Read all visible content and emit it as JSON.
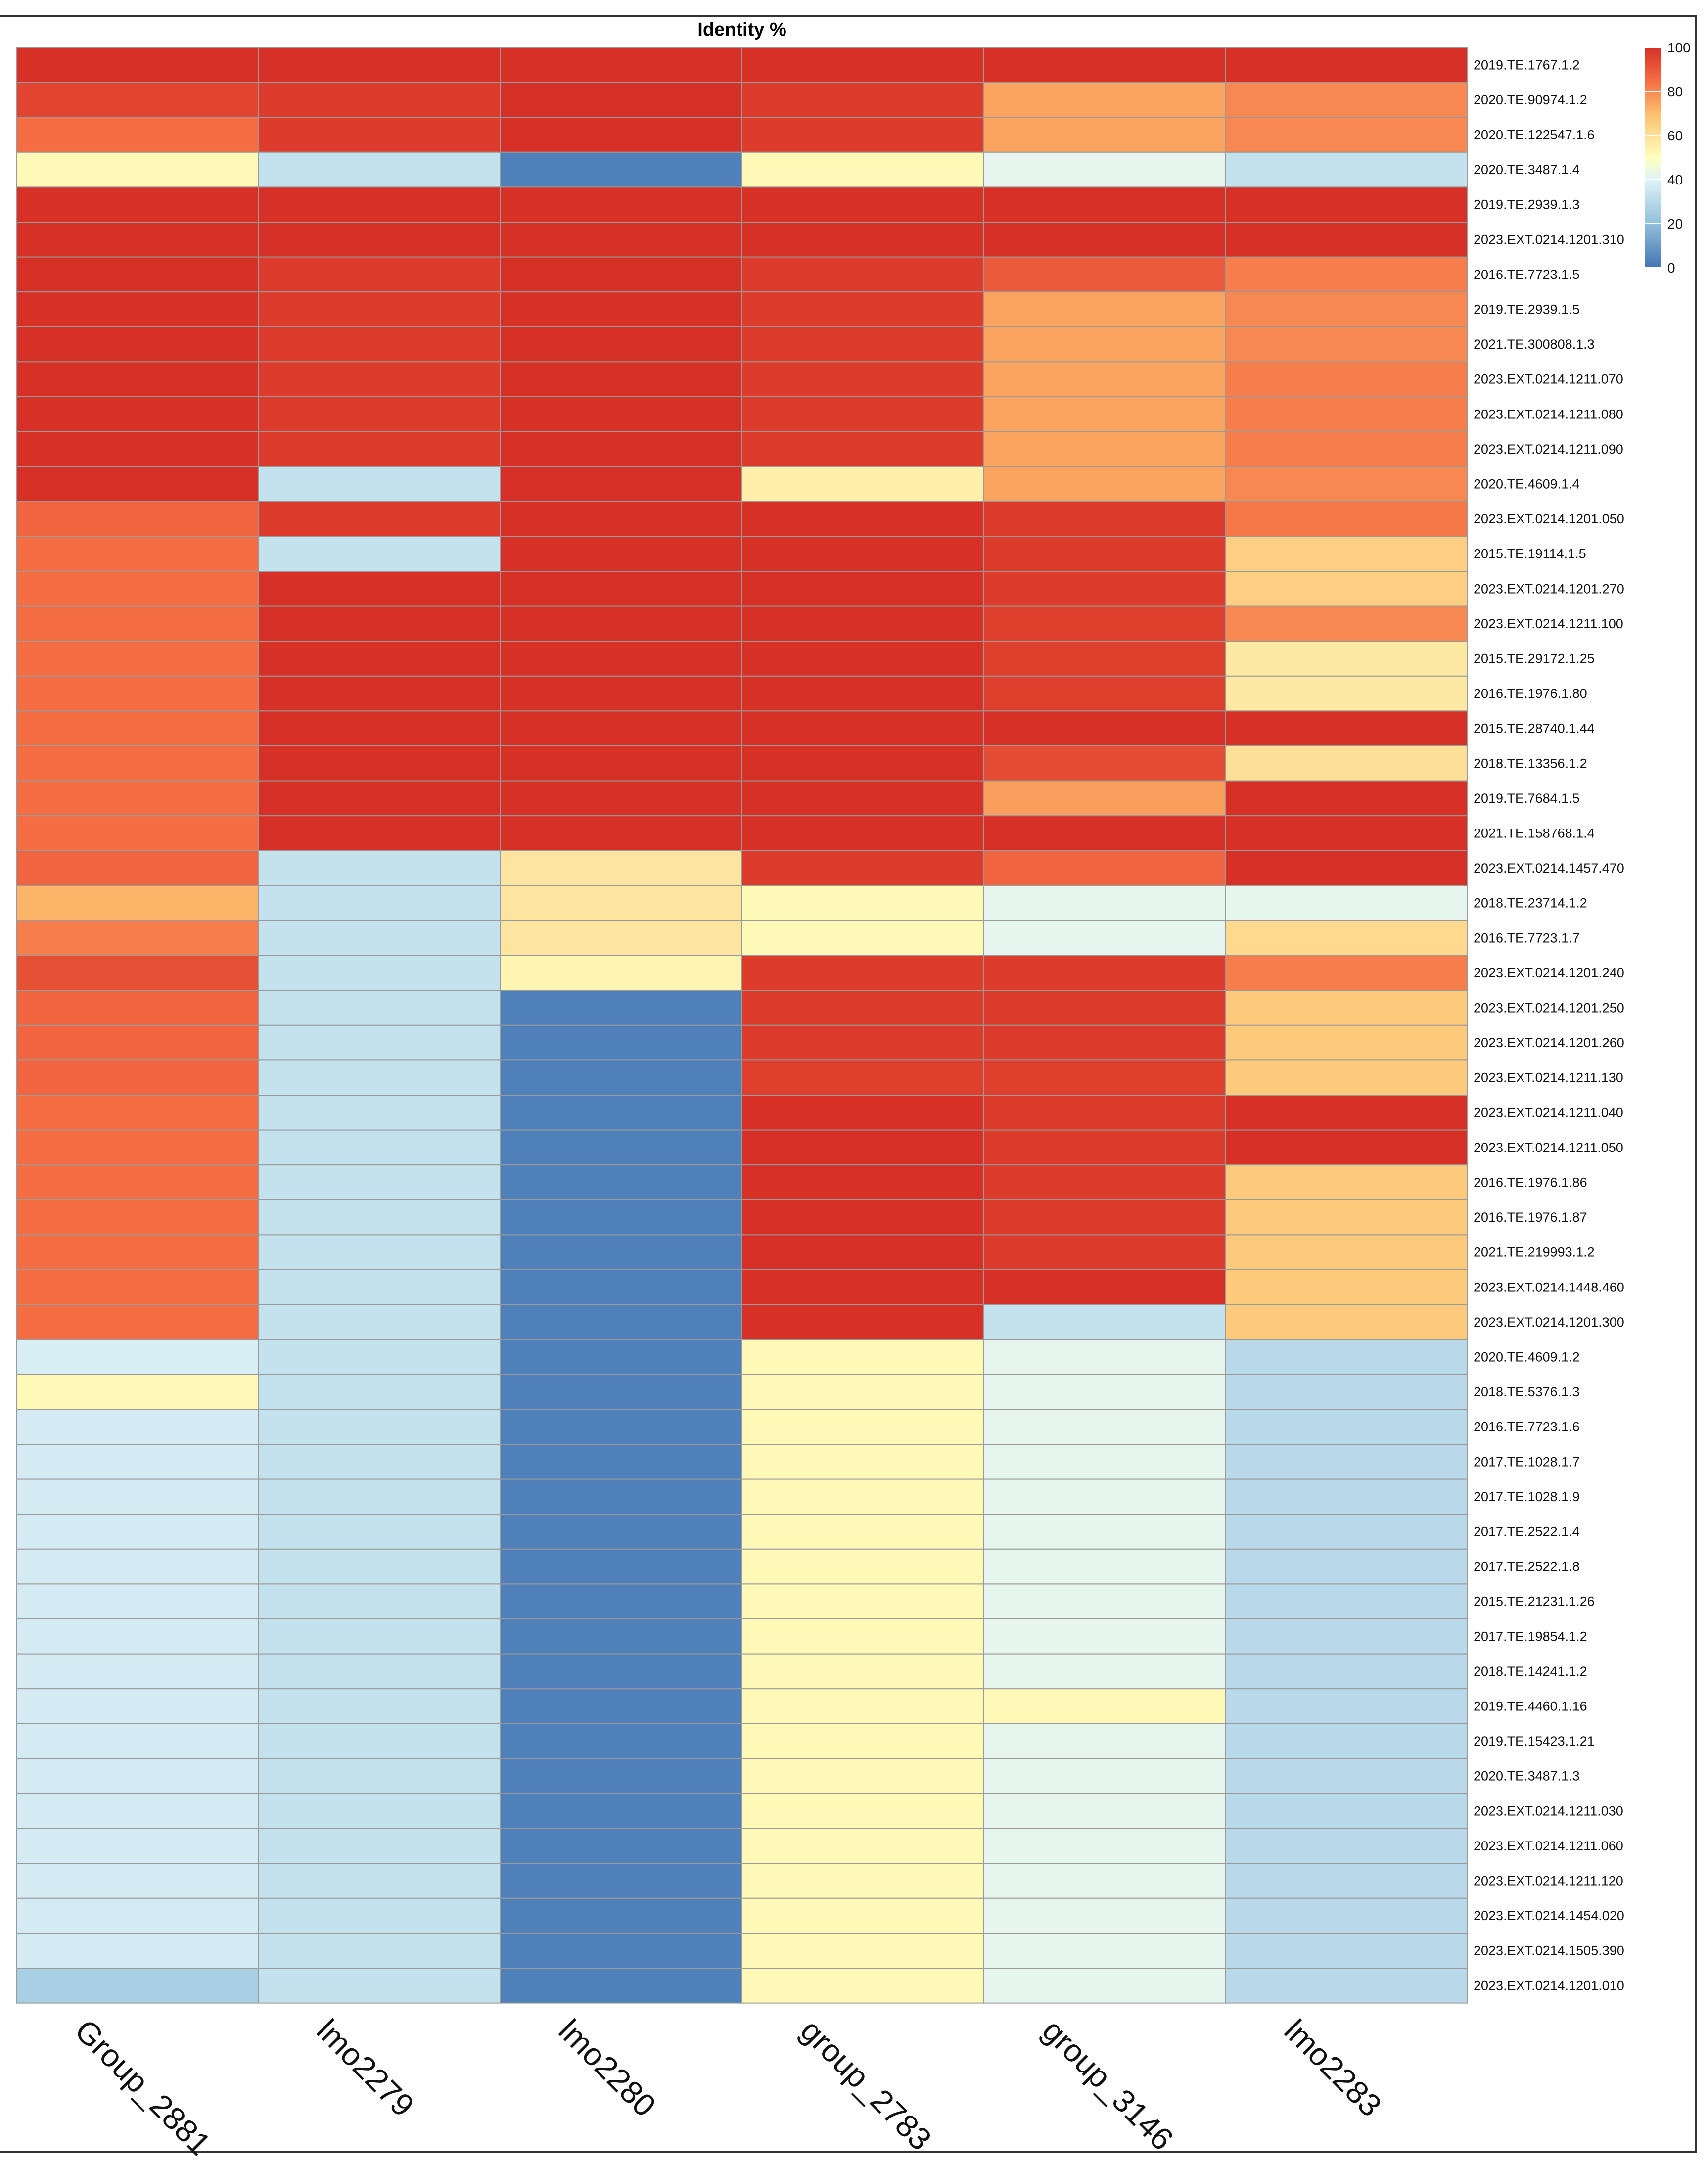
{
  "chart_data": {
    "type": "heatmap",
    "title": "Identity %",
    "columns": [
      "Group_2881",
      "lmo2279",
      "lmo2280",
      "group_2783",
      "group_3146",
      "lmo2283"
    ],
    "rows": [
      "2019.TE.1767.1.2",
      "2020.TE.90974.1.2",
      "2020.TE.122547.1.6",
      "2020.TE.3487.1.4",
      "2019.TE.2939.1.3",
      "2023.EXT.0214.1201.310",
      "2016.TE.7723.1.5",
      "2019.TE.2939.1.5",
      "2021.TE.300808.1.3",
      "2023.EXT.0214.1211.070",
      "2023.EXT.0214.1211.080",
      "2023.EXT.0214.1211.090",
      "2020.TE.4609.1.4",
      "2023.EXT.0214.1201.050",
      "2015.TE.19114.1.5",
      "2023.EXT.0214.1201.270",
      "2023.EXT.0214.1211.100",
      "2015.TE.29172.1.25",
      "2016.TE.1976.1.80",
      "2015.TE.28740.1.44",
      "2018.TE.13356.1.2",
      "2019.TE.7684.1.5",
      "2021.TE.158768.1.4",
      "2023.EXT.0214.1457.470",
      "2018.TE.23714.1.2",
      "2016.TE.7723.1.7",
      "2023.EXT.0214.1201.240",
      "2023.EXT.0214.1201.250",
      "2023.EXT.0214.1201.260",
      "2023.EXT.0214.1211.130",
      "2023.EXT.0214.1211.040",
      "2023.EXT.0214.1211.050",
      "2016.TE.1976.1.86",
      "2016.TE.1976.1.87",
      "2021.TE.219993.1.2",
      "2023.EXT.0214.1448.460",
      "2023.EXT.0214.1201.300",
      "2020.TE.4609.1.2",
      "2018.TE.5376.1.3",
      "2016.TE.7723.1.6",
      "2017.TE.1028.1.7",
      "2017.TE.1028.1.9",
      "2017.TE.2522.1.4",
      "2017.TE.2522.1.8",
      "2015.TE.21231.1.26",
      "2017.TE.19854.1.2",
      "2018.TE.14241.1.2",
      "2019.TE.4460.1.16",
      "2019.TE.15423.1.21",
      "2020.TE.3487.1.3",
      "2023.EXT.0214.1211.030",
      "2023.EXT.0214.1211.060",
      "2023.EXT.0214.1211.120",
      "2023.EXT.0214.1454.020",
      "2023.EXT.0214.1505.390",
      "2023.EXT.0214.1201.010"
    ],
    "values": [
      [
        100,
        100,
        100,
        100,
        100,
        100
      ],
      [
        95,
        97,
        100,
        97,
        75,
        80
      ],
      [
        85,
        97,
        100,
        97,
        75,
        80
      ],
      [
        52,
        33,
        3,
        52,
        42,
        33
      ],
      [
        100,
        100,
        100,
        100,
        100,
        100
      ],
      [
        100,
        100,
        100,
        100,
        100,
        100
      ],
      [
        100,
        97,
        100,
        97,
        90,
        82
      ],
      [
        100,
        97,
        100,
        97,
        75,
        80
      ],
      [
        100,
        97,
        100,
        97,
        75,
        80
      ],
      [
        100,
        97,
        100,
        97,
        75,
        82
      ],
      [
        100,
        97,
        100,
        97,
        75,
        82
      ],
      [
        100,
        97,
        100,
        97,
        75,
        82
      ],
      [
        100,
        33,
        100,
        55,
        75,
        80
      ],
      [
        87,
        97,
        100,
        100,
        97,
        83
      ],
      [
        85,
        33,
        100,
        100,
        97,
        65
      ],
      [
        85,
        100,
        100,
        100,
        97,
        65
      ],
      [
        85,
        100,
        100,
        100,
        96,
        80
      ],
      [
        85,
        100,
        100,
        100,
        96,
        57
      ],
      [
        85,
        100,
        100,
        100,
        96,
        57
      ],
      [
        85,
        100,
        100,
        100,
        100,
        100
      ],
      [
        85,
        100,
        100,
        100,
        93,
        60
      ],
      [
        85,
        100,
        100,
        100,
        76,
        100
      ],
      [
        85,
        100,
        100,
        100,
        100,
        100
      ],
      [
        87,
        33,
        58,
        97,
        87,
        100
      ],
      [
        72,
        33,
        58,
        52,
        42,
        42
      ],
      [
        82,
        33,
        58,
        52,
        42,
        62
      ],
      [
        92,
        33,
        53,
        97,
        97,
        82
      ],
      [
        87,
        33,
        3,
        97,
        97,
        67
      ],
      [
        87,
        33,
        3,
        97,
        97,
        67
      ],
      [
        87,
        33,
        3,
        96,
        96,
        67
      ],
      [
        85,
        33,
        3,
        100,
        97,
        100
      ],
      [
        85,
        33,
        3,
        100,
        97,
        100
      ],
      [
        85,
        33,
        3,
        100,
        97,
        67
      ],
      [
        85,
        33,
        3,
        100,
        97,
        67
      ],
      [
        85,
        33,
        3,
        100,
        97,
        67
      ],
      [
        85,
        33,
        3,
        100,
        100,
        67
      ],
      [
        85,
        33,
        3,
        100,
        33,
        67
      ],
      [
        38,
        33,
        3,
        52,
        42,
        30
      ],
      [
        52,
        33,
        3,
        52,
        42,
        30
      ],
      [
        37,
        33,
        3,
        52,
        42,
        30
      ],
      [
        37,
        33,
        3,
        52,
        42,
        30
      ],
      [
        37,
        33,
        3,
        52,
        42,
        30
      ],
      [
        37,
        33,
        3,
        52,
        42,
        30
      ],
      [
        37,
        33,
        3,
        52,
        42,
        30
      ],
      [
        37,
        33,
        3,
        52,
        42,
        30
      ],
      [
        37,
        33,
        3,
        52,
        42,
        30
      ],
      [
        37,
        33,
        3,
        52,
        42,
        30
      ],
      [
        37,
        33,
        3,
        52,
        52,
        30
      ],
      [
        37,
        33,
        3,
        52,
        42,
        30
      ],
      [
        37,
        33,
        3,
        52,
        42,
        30
      ],
      [
        37,
        33,
        3,
        52,
        42,
        30
      ],
      [
        37,
        33,
        3,
        52,
        42,
        30
      ],
      [
        37,
        33,
        3,
        52,
        42,
        30
      ],
      [
        37,
        33,
        3,
        52,
        42,
        30
      ],
      [
        37,
        33,
        3,
        52,
        42,
        30
      ],
      [
        26,
        33,
        3,
        52,
        42,
        30
      ]
    ],
    "color_scale": {
      "min": 0,
      "max": 100,
      "stops": [
        {
          "value": 0,
          "color": "#4575b4"
        },
        {
          "value": 20,
          "color": "#91bfdb"
        },
        {
          "value": 40,
          "color": "#e0f3f8"
        },
        {
          "value": 50,
          "color": "#ffffbf"
        },
        {
          "value": 70,
          "color": "#fdbf6f"
        },
        {
          "value": 85,
          "color": "#f46d43"
        },
        {
          "value": 100,
          "color": "#d73027"
        }
      ],
      "ticks": [
        "0",
        "20",
        "40",
        "60",
        "80",
        "100"
      ]
    },
    "grid": true,
    "legend": "top-right",
    "cell_border_color": "#9a9a9a"
  }
}
